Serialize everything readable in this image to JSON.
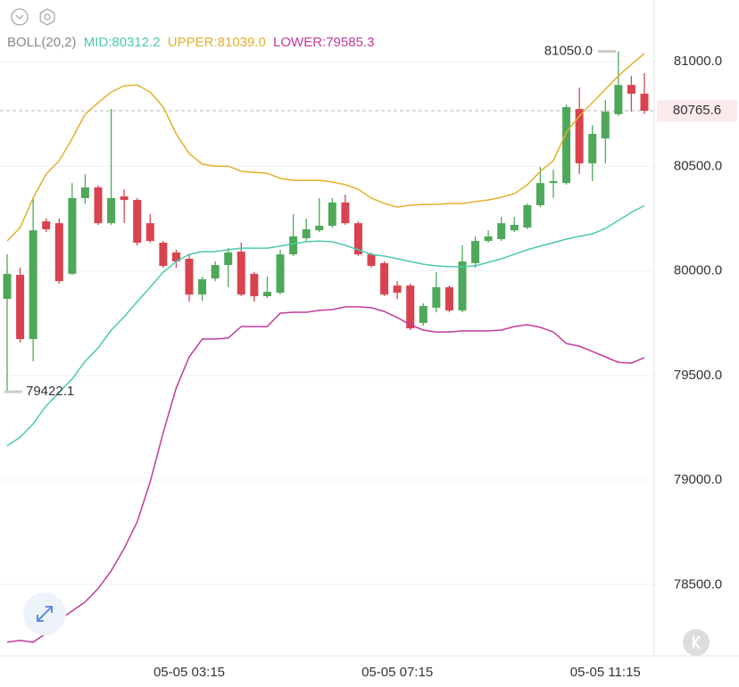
{
  "chart_data": {
    "type": "candlestick",
    "indicator": "BOLL(20,2)",
    "categories": [
      null,
      null,
      null,
      null,
      null,
      null,
      null,
      null,
      null,
      null,
      null,
      null,
      null,
      null,
      "05-05 03:15",
      null,
      null,
      null,
      null,
      null,
      null,
      null,
      null,
      null,
      null,
      null,
      null,
      null,
      null,
      null,
      "05-05 07:15",
      null,
      null,
      null,
      null,
      null,
      null,
      null,
      null,
      null,
      null,
      null,
      null,
      null,
      null,
      null,
      "05-05 11:15",
      null,
      null,
      null
    ],
    "open": [
      79866,
      79981,
      79674,
      80237,
      80228,
      79986,
      80348,
      80399,
      80228,
      80356,
      80339,
      80228,
      80135,
      80088,
      80058,
      79887,
      79964,
      80028,
      80092,
      79986,
      79879,
      79896,
      80079,
      80156,
      80194,
      80216,
      80327,
      80228,
      80079,
      80037,
      79930,
      79930,
      79751,
      79824,
      79922,
      79811,
      80037,
      80143,
      80152,
      80194,
      80207,
      80314,
      80420,
      80420,
      80774,
      80514,
      80633,
      80749,
      80889,
      80847
    ],
    "high": [
      80079,
      80015,
      80348,
      80250,
      80250,
      80420,
      80463,
      80408,
      80774,
      80390,
      80348,
      80271,
      80143,
      80101,
      80079,
      79973,
      80045,
      80109,
      80135,
      79994,
      79973,
      80101,
      80271,
      80250,
      80348,
      80348,
      80365,
      80237,
      80088,
      80045,
      79951,
      79939,
      79845,
      79994,
      79930,
      80122,
      80165,
      80194,
      80258,
      80258,
      80322,
      80497,
      80484,
      80795,
      80876,
      80697,
      80817,
      81050.0,
      80932,
      80945
    ],
    "low": [
      79422.1,
      79657,
      79568,
      80186,
      79939,
      79981,
      80322,
      80220,
      80220,
      80228,
      80122,
      80135,
      80015,
      80015,
      79853,
      79858,
      79951,
      79922,
      79879,
      79853,
      79870,
      79887,
      80071,
      80143,
      80186,
      80207,
      80220,
      80071,
      80015,
      79879,
      79866,
      79717,
      79738,
      79802,
      79802,
      79802,
      80015,
      80135,
      80143,
      80186,
      80199,
      80305,
      80348,
      80412,
      80463,
      80429,
      80514,
      80740,
      80761,
      80749
    ],
    "close": [
      79986,
      79674,
      80194,
      80199,
      79951,
      80348,
      80399,
      80228,
      80348,
      80339,
      80135,
      80143,
      80024,
      80045,
      79887,
      79960,
      80028,
      80088,
      79887,
      79879,
      79900,
      80079,
      80165,
      80199,
      80216,
      80327,
      80228,
      80079,
      80024,
      79887,
      79896,
      79725,
      79832,
      79922,
      79811,
      80045,
      80143,
      80165,
      80228,
      80220,
      80314,
      80420,
      80429,
      80783,
      80514,
      80655,
      80761,
      80889,
      80847,
      80765.6
    ],
    "up_color": "#4fa85a",
    "down_color": "#d8434f",
    "series": [
      {
        "name": "MID:80312.2",
        "color": "#4cc9ad",
        "values": [
          79163,
          79205,
          79269,
          79355,
          79419,
          79483,
          79568,
          79632,
          79717,
          79781,
          79853,
          79922,
          79994,
          80045,
          80079,
          80092,
          80092,
          80101,
          80109,
          80109,
          80109,
          80118,
          80130,
          80139,
          80143,
          80139,
          80122,
          80101,
          80079,
          80071,
          80058,
          80045,
          80032,
          80024,
          80020,
          80020,
          80024,
          80041,
          80058,
          80079,
          80101,
          80118,
          80135,
          80152,
          80165,
          80177,
          80203,
          80241,
          80280,
          80312.2
        ]
      },
      {
        "name": "UPPER:81039.0",
        "color": "#e3b02a",
        "values": [
          80143,
          80207,
          80348,
          80463,
          80527,
          80633,
          80749,
          80804,
          80855,
          80885,
          80889,
          80855,
          80783,
          80655,
          80561,
          80510,
          80501,
          80501,
          80476,
          80471,
          80467,
          80442,
          80433,
          80433,
          80433,
          80425,
          80412,
          80390,
          80348,
          80322,
          80305,
          80314,
          80318,
          80318,
          80322,
          80322,
          80331,
          80339,
          80352,
          80369,
          80412,
          80476,
          80527,
          80663,
          80740,
          80804,
          80868,
          80932,
          80987,
          81039.0
        ]
      },
      {
        "name": "LOWER:79585.3",
        "color": "#c23a9c",
        "values": [
          78225,
          78234,
          78225,
          78268,
          78332,
          78374,
          78417,
          78481,
          78566,
          78673,
          78800,
          78992,
          79227,
          79440,
          79589,
          79674,
          79674,
          79679,
          79734,
          79734,
          79734,
          79798,
          79802,
          79802,
          79811,
          79815,
          79828,
          79828,
          79824,
          79806,
          79777,
          79743,
          79717,
          79708,
          79708,
          79713,
          79713,
          79713,
          79717,
          79734,
          79743,
          79730,
          79708,
          79653,
          79640,
          79615,
          79589,
          79563,
          79559,
          79585.3
        ]
      }
    ],
    "high_label": {
      "value": 81050.0,
      "label": "81050.0"
    },
    "low_label": {
      "value": 79422.1,
      "label": "79422.1"
    },
    "last_label": {
      "value": 80765.6,
      "label": "80765.6"
    },
    "ylim": [
      78160,
      81295
    ],
    "yticks": [
      {
        "value": 78500,
        "label": "78500.0"
      },
      {
        "value": 79000,
        "label": "79000.0"
      },
      {
        "value": 79500,
        "label": "79500.0"
      },
      {
        "value": 80000,
        "label": "80000.0"
      },
      {
        "value": 80500,
        "label": "80500.0"
      },
      {
        "value": 81000,
        "label": "81000.0"
      }
    ],
    "grid": true
  }
}
